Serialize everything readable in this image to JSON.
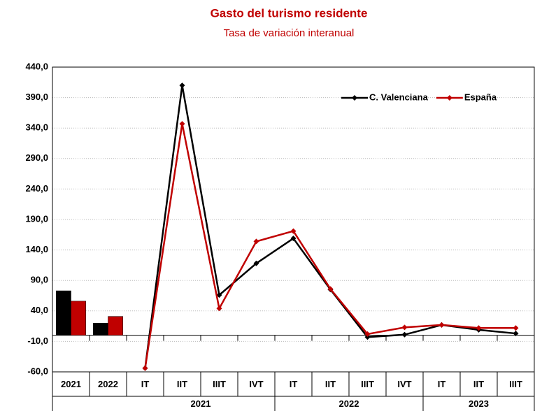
{
  "chart_data": {
    "type": "combo",
    "title": "Gasto del turismo  residente",
    "subtitle": "Tasa de variación interanual",
    "categories": [
      "2021",
      "2022",
      "IT",
      "IIT",
      "IIIT",
      "IVT",
      "IT",
      "IIT",
      "IIIT",
      "IVT",
      "IT",
      "IIT",
      "IIIT"
    ],
    "groups": [
      null,
      null,
      "2021",
      "2021",
      "2021",
      "2021",
      "2022",
      "2022",
      "2022",
      "2022",
      "2023",
      "2023",
      "2023"
    ],
    "series": [
      {
        "name": "C. Valenciana",
        "color": "#000000",
        "values": [
          73,
          20,
          -54,
          410,
          66,
          118,
          159,
          75,
          -3,
          1,
          17,
          9,
          3
        ]
      },
      {
        "name": "España",
        "color": "#c00000",
        "values": [
          56,
          31,
          -54,
          347,
          44,
          154,
          171,
          76,
          2,
          13,
          17,
          12,
          12
        ]
      }
    ],
    "ylim": [
      -60,
      440
    ],
    "yticks": [
      {
        "value": -60,
        "label": "-60,0"
      },
      {
        "value": -10,
        "label": "-10,0"
      },
      {
        "value": 40,
        "label": "40,0"
      },
      {
        "value": 90,
        "label": "90,0"
      },
      {
        "value": 140,
        "label": "140,0"
      },
      {
        "value": 190,
        "label": "190,0"
      },
      {
        "value": 240,
        "label": "240,0"
      },
      {
        "value": 290,
        "label": "290,0"
      },
      {
        "value": 340,
        "label": "340,0"
      },
      {
        "value": 390,
        "label": "390,0"
      },
      {
        "value": 440,
        "label": "440,0"
      }
    ],
    "grid": true,
    "legend": "upper right"
  }
}
